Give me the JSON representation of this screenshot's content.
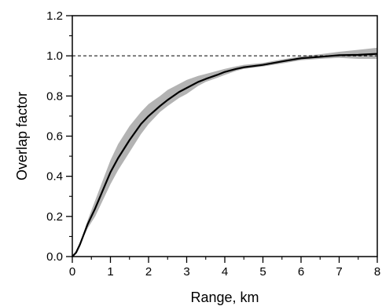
{
  "chart_data": {
    "type": "line",
    "title": "",
    "xlabel": "Range, km",
    "ylabel": "Overlap factor",
    "xlim": [
      0,
      8
    ],
    "ylim": [
      0,
      1.2
    ],
    "xticks": [
      0,
      1,
      2,
      3,
      4,
      5,
      6,
      7,
      8
    ],
    "xtick_labels": [
      "0",
      "1",
      "2",
      "3",
      "4",
      "5",
      "6",
      "7",
      "8"
    ],
    "yticks": [
      0,
      0.2,
      0.4,
      0.6,
      0.8,
      1.0,
      1.2
    ],
    "ytick_labels": [
      "0.0",
      "0.2",
      "0.4",
      "0.6",
      "0.8",
      "1.0",
      "1.2"
    ],
    "x_minor_step": 0.5,
    "y_minor_step": 0.1,
    "grid": false,
    "reference_line": {
      "y": 1.0,
      "style": "dashed",
      "color": "#000000"
    },
    "series": [
      {
        "values_x": [
          0,
          0.1,
          0.2,
          0.3,
          0.4,
          0.5,
          0.6,
          0.8,
          1.0,
          1.2,
          1.5,
          1.8,
          2.0,
          2.3,
          2.5,
          2.8,
          3.0,
          3.3,
          3.5,
          3.8,
          4.0,
          4.3,
          4.5,
          5.0,
          5.5,
          6.0,
          6.5,
          7.0,
          7.5,
          8.0
        ],
        "values_y": [
          0,
          0.02,
          0.06,
          0.11,
          0.16,
          0.2,
          0.24,
          0.33,
          0.42,
          0.49,
          0.58,
          0.66,
          0.7,
          0.75,
          0.78,
          0.82,
          0.84,
          0.87,
          0.885,
          0.905,
          0.92,
          0.935,
          0.943,
          0.955,
          0.972,
          0.988,
          0.995,
          1.003,
          1.005,
          1.01
        ],
        "band_lower": [
          0,
          0.02,
          0.05,
          0.1,
          0.14,
          0.17,
          0.2,
          0.28,
          0.36,
          0.43,
          0.52,
          0.61,
          0.66,
          0.72,
          0.75,
          0.79,
          0.81,
          0.85,
          0.87,
          0.89,
          0.905,
          0.925,
          0.935,
          0.947,
          0.962,
          0.978,
          0.985,
          0.99,
          0.985,
          0.985
        ],
        "band_upper": [
          0,
          0.03,
          0.07,
          0.12,
          0.18,
          0.23,
          0.28,
          0.38,
          0.48,
          0.56,
          0.65,
          0.72,
          0.76,
          0.8,
          0.83,
          0.86,
          0.88,
          0.9,
          0.91,
          0.925,
          0.935,
          0.948,
          0.955,
          0.965,
          0.982,
          0.998,
          1.008,
          1.02,
          1.03,
          1.04
        ],
        "line_color": "#000000",
        "band_color": "#b3b3b3"
      }
    ]
  }
}
